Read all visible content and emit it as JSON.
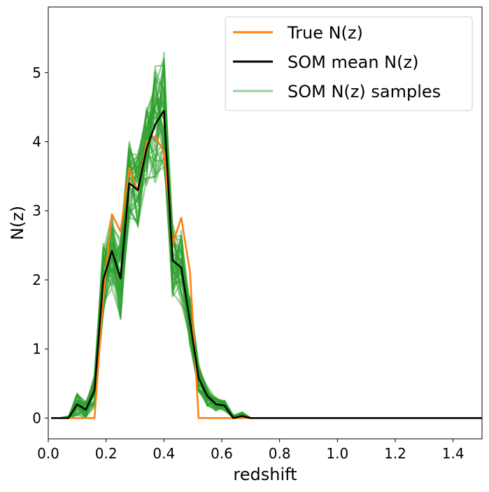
{
  "chart_data": {
    "type": "line",
    "xlabel": "redshift",
    "ylabel": "N(z)",
    "xlim": [
      0.0,
      1.5
    ],
    "ylim": [
      -0.3,
      5.95
    ],
    "x_ticks": [
      "0.0",
      "0.2",
      "0.4",
      "0.6",
      "0.8",
      "1.0",
      "1.2",
      "1.4"
    ],
    "y_ticks": [
      "0",
      "1",
      "2",
      "3",
      "4",
      "5"
    ],
    "grid": false,
    "legend_position": "top-right",
    "x": [
      0.01,
      0.04,
      0.07,
      0.1,
      0.13,
      0.16,
      0.19,
      0.22,
      0.25,
      0.28,
      0.31,
      0.34,
      0.37,
      0.4,
      0.43,
      0.46,
      0.49,
      0.52,
      0.55,
      0.58,
      0.61,
      0.64,
      0.67,
      0.7,
      1.5
    ],
    "series": [
      {
        "name": "True N(z)",
        "color": "#ff7f0e",
        "values": [
          0,
          0,
          0,
          0,
          0,
          0,
          1.75,
          2.95,
          2.7,
          3.62,
          3.28,
          4.0,
          4.08,
          3.85,
          2.52,
          2.9,
          2.12,
          0,
          0,
          0,
          0,
          0,
          0,
          0,
          0
        ]
      },
      {
        "name": "SOM mean N(z)",
        "color": "#000000",
        "values": [
          0,
          0,
          0,
          0.2,
          0.12,
          0.4,
          2.0,
          2.42,
          2.02,
          3.4,
          3.3,
          3.9,
          4.25,
          4.45,
          2.28,
          2.18,
          1.4,
          0.58,
          0.32,
          0.2,
          0.18,
          0,
          0.03,
          0,
          0
        ]
      }
    ],
    "samples": {
      "name": "SOM N(z) samples",
      "color": "#2ca02c",
      "spread": [
        0,
        0,
        0.03,
        0.16,
        0.12,
        0.24,
        0.55,
        0.55,
        0.6,
        0.6,
        0.55,
        0.6,
        0.9,
        0.85,
        0.55,
        0.55,
        0.35,
        0.2,
        0.15,
        0.1,
        0.08,
        0.04,
        0.06,
        0,
        0
      ]
    },
    "legend": [
      {
        "label": "True N(z)",
        "color": "#ff7f0e"
      },
      {
        "label": "SOM mean N(z)",
        "color": "#000000"
      },
      {
        "label": "SOM N(z) samples",
        "color": "#2ca02c"
      }
    ]
  }
}
